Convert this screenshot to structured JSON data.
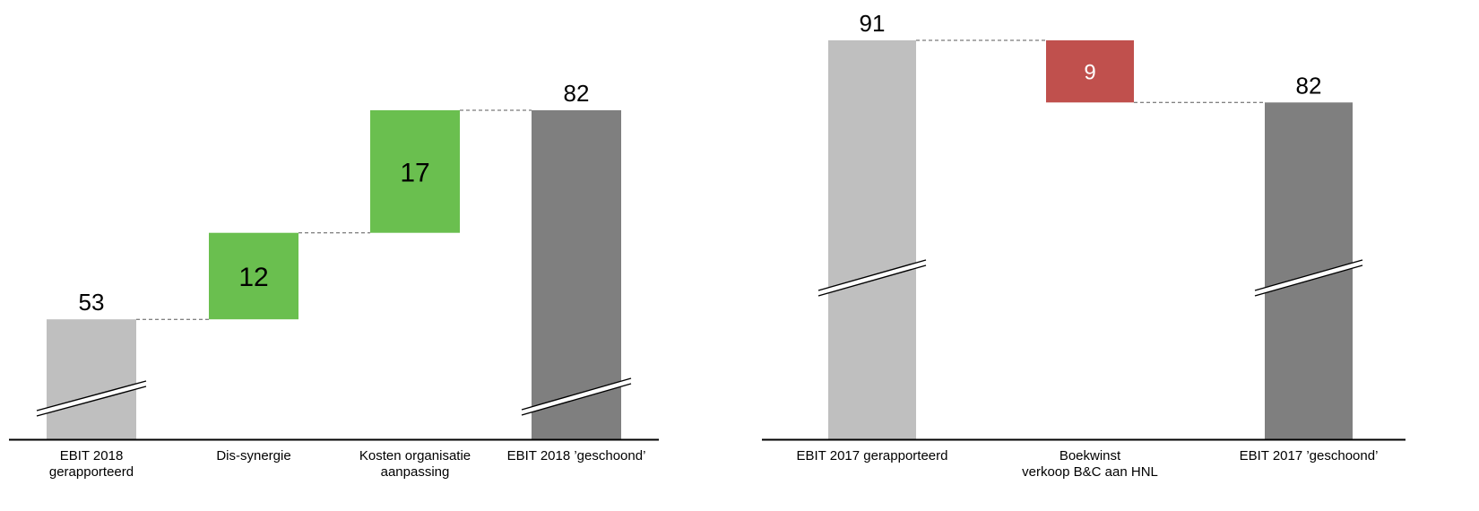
{
  "chart_data": [
    {
      "type": "bar",
      "subtype": "waterfall",
      "axis_break": true,
      "categories": [
        "EBIT 2018\ngerapporteerd",
        "Dis-synergie",
        "Kosten organisatie\naanpassing",
        "EBIT 2018 ’geschoond’"
      ],
      "steps": [
        {
          "kind": "total",
          "value": 53,
          "label": "53",
          "color": "#bfbfbf",
          "break_mark": true
        },
        {
          "kind": "increase",
          "value": 12,
          "label": "12",
          "color": "#6abf4f"
        },
        {
          "kind": "increase",
          "value": 17,
          "label": "17",
          "color": "#6abf4f"
        },
        {
          "kind": "total",
          "value": 82,
          "label": "82",
          "color": "#7f7f7f",
          "break_mark": true
        }
      ]
    },
    {
      "type": "bar",
      "subtype": "waterfall",
      "axis_break": true,
      "categories": [
        "EBIT 2017 gerapporteerd",
        "Boekwinst\nverkoop B&C aan HNL",
        "EBIT 2017 ’geschoond’"
      ],
      "steps": [
        {
          "kind": "total",
          "value": 91,
          "label": "91",
          "color": "#bfbfbf",
          "break_mark": true
        },
        {
          "kind": "decrease",
          "value": 9,
          "label": "9",
          "color": "#c0504d"
        },
        {
          "kind": "total",
          "value": 82,
          "label": "82",
          "color": "#7f7f7f",
          "break_mark": true
        }
      ]
    }
  ]
}
